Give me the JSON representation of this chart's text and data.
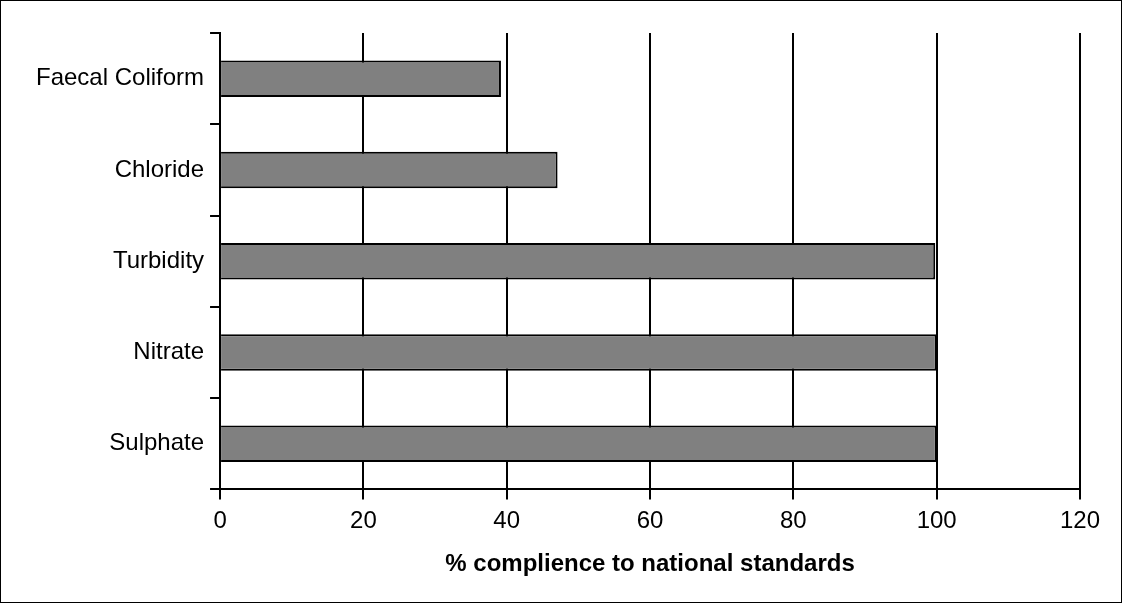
{
  "chart_data": {
    "type": "bar",
    "orientation": "horizontal",
    "xlabel": "% complience to national standards",
    "categories": [
      "Faecal Coliform",
      "Chloride",
      "Turbidity",
      "Nitrate",
      "Sulphate"
    ],
    "values": [
      39.2,
      47.1,
      99.8,
      100,
      100
    ],
    "color": "#808080",
    "xlim": [
      0,
      120
    ],
    "xticks": [
      0,
      20,
      40,
      60,
      80,
      100,
      120
    ],
    "grid": "x",
    "legend": false
  }
}
